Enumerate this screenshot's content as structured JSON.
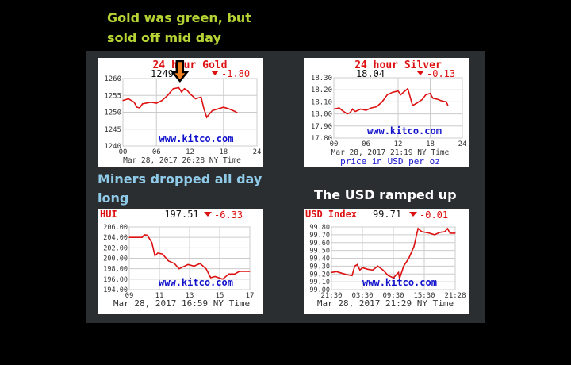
{
  "captions": {
    "gold": [
      "Gold was green, but",
      "sold off mid day"
    ],
    "miners": "Miners dropped all day long",
    "usd": "The USD ramped up"
  },
  "colors": {
    "line": "#dd1111",
    "title": "#dd1111",
    "watermark": "#1111cc",
    "gold_caption": "#b5d334",
    "miners_caption": "#8fcbe8",
    "usd_caption": "#ffffff",
    "arrow": "#f08020"
  },
  "chart_data": [
    {
      "type": "line",
      "title": "24 hour Gold",
      "price": "1249",
      "change": "-1.80",
      "watermark": "www.kitco.com",
      "footer": "Mar 28, 2017 20:28 NY Time",
      "subfooter": "",
      "xlim": [
        0,
        24
      ],
      "xticks": [
        "00",
        "06",
        "12",
        "18",
        "24"
      ],
      "xtick_values": [
        0,
        6,
        12,
        18,
        24
      ],
      "ylim": [
        1240,
        1260
      ],
      "yticks": [
        "1240",
        "1245",
        "1250",
        "1255",
        "1260"
      ],
      "grid": true,
      "annotation": "down-arrow-at-peak",
      "x": [
        0,
        1,
        2,
        2.5,
        3,
        3.5,
        5,
        6,
        7,
        8,
        9,
        10,
        10.5,
        11,
        11.5,
        12,
        13,
        14,
        14.5,
        15,
        15.5,
        16,
        17,
        18,
        19,
        20,
        20.5
      ],
      "y": [
        1253.5,
        1254,
        1253,
        1251.5,
        1251.3,
        1252.5,
        1253,
        1252.7,
        1253.5,
        1255,
        1257,
        1257.3,
        1256,
        1257,
        1256.5,
        1255.5,
        1254,
        1254.5,
        1251,
        1248.5,
        1249.5,
        1250.5,
        1251,
        1251.5,
        1251,
        1250.3,
        1249.8
      ]
    },
    {
      "type": "line",
      "title": "24 hour Silver",
      "price": "18.04",
      "change": "-0.13",
      "watermark": "www.kitco.com",
      "footer": "Mar 28, 2017 21:19 NY Time",
      "subfooter": "price in USD per oz",
      "xlim": [
        0,
        24
      ],
      "xticks": [
        "00",
        "06",
        "12",
        "18",
        "24"
      ],
      "xtick_values": [
        0,
        6,
        12,
        18,
        24
      ],
      "ylim": [
        17.8,
        18.3
      ],
      "yticks": [
        "17.80",
        "17.90",
        "18.00",
        "18.10",
        "18.20",
        "18.30"
      ],
      "grid": true,
      "x": [
        0,
        1,
        1.5,
        2.5,
        3,
        3.5,
        4,
        5,
        6,
        7,
        8,
        9,
        10,
        11,
        12,
        12.5,
        13,
        13.8,
        14.2,
        14.7,
        15.5,
        16.5,
        17.2,
        18,
        18.5,
        19.5,
        20,
        21,
        21.3
      ],
      "y": [
        18.04,
        18.05,
        18.03,
        18.0,
        18.01,
        18.04,
        18.02,
        18.04,
        18.03,
        18.05,
        18.06,
        18.1,
        18.16,
        18.18,
        18.19,
        18.16,
        18.18,
        18.21,
        18.15,
        18.07,
        18.09,
        18.12,
        18.16,
        18.17,
        18.13,
        18.12,
        18.11,
        18.1,
        18.07
      ]
    },
    {
      "type": "line",
      "title": "HUI",
      "price": "197.51",
      "change": "-6.33",
      "watermark": "www.kitco.com",
      "footer": "Mar 28, 2017 16:59 NY Time",
      "subfooter": "",
      "xlim": [
        9,
        17
      ],
      "xticks": [
        "09",
        "11",
        "13",
        "15",
        "17"
      ],
      "xtick_values": [
        9,
        11,
        13,
        15,
        17
      ],
      "ylim": [
        194,
        206
      ],
      "yticks": [
        "194.00",
        "196.00",
        "198.00",
        "200.00",
        "202.00",
        "204.00",
        "206.00"
      ],
      "grid": true,
      "x": [
        9,
        9.85,
        10,
        10.2,
        10.5,
        10.7,
        10.9,
        11.2,
        11.6,
        12,
        12.3,
        12.9,
        13.3,
        13.7,
        14.1,
        14.4,
        14.7,
        15.2,
        15.6,
        16,
        16.3,
        17
      ],
      "y": [
        204,
        204,
        204.5,
        204.4,
        203,
        200.5,
        201,
        200.8,
        199.5,
        199,
        198,
        198.8,
        198.5,
        199,
        198,
        196.3,
        196.5,
        196,
        197,
        197,
        197.5,
        197.5
      ]
    },
    {
      "type": "line",
      "title": "USD Index",
      "price": "99.71",
      "change": "-0.01",
      "watermark": "www.kitco.com",
      "footer": "Mar 28, 2017 21:29 NY Time",
      "subfooter": "",
      "xlim": [
        0,
        24
      ],
      "xticks": [
        "21:30",
        "03:30",
        "09:30",
        "15:30",
        "21:28"
      ],
      "xtick_values": [
        0,
        6,
        12,
        18,
        24
      ],
      "ylim": [
        99.0,
        99.8
      ],
      "yticks": [
        "99.00",
        "99.10",
        "99.20",
        "99.30",
        "99.40",
        "99.50",
        "99.60",
        "99.70",
        "99.80"
      ],
      "grid": true,
      "x": [
        0,
        1,
        2,
        3,
        4,
        4.5,
        5,
        5.5,
        6,
        7,
        8,
        9,
        10,
        11,
        12,
        13,
        13.2,
        14,
        15,
        16,
        16.5,
        16.8,
        17.5,
        19,
        20,
        21,
        22,
        22.5,
        23,
        24
      ],
      "y": [
        99.22,
        99.23,
        99.21,
        99.19,
        99.18,
        99.3,
        99.32,
        99.25,
        99.28,
        99.26,
        99.25,
        99.3,
        99.25,
        99.18,
        99.15,
        99.22,
        99.14,
        99.3,
        99.4,
        99.55,
        99.7,
        99.78,
        99.74,
        99.72,
        99.7,
        99.73,
        99.74,
        99.78,
        99.72,
        99.72
      ]
    }
  ]
}
